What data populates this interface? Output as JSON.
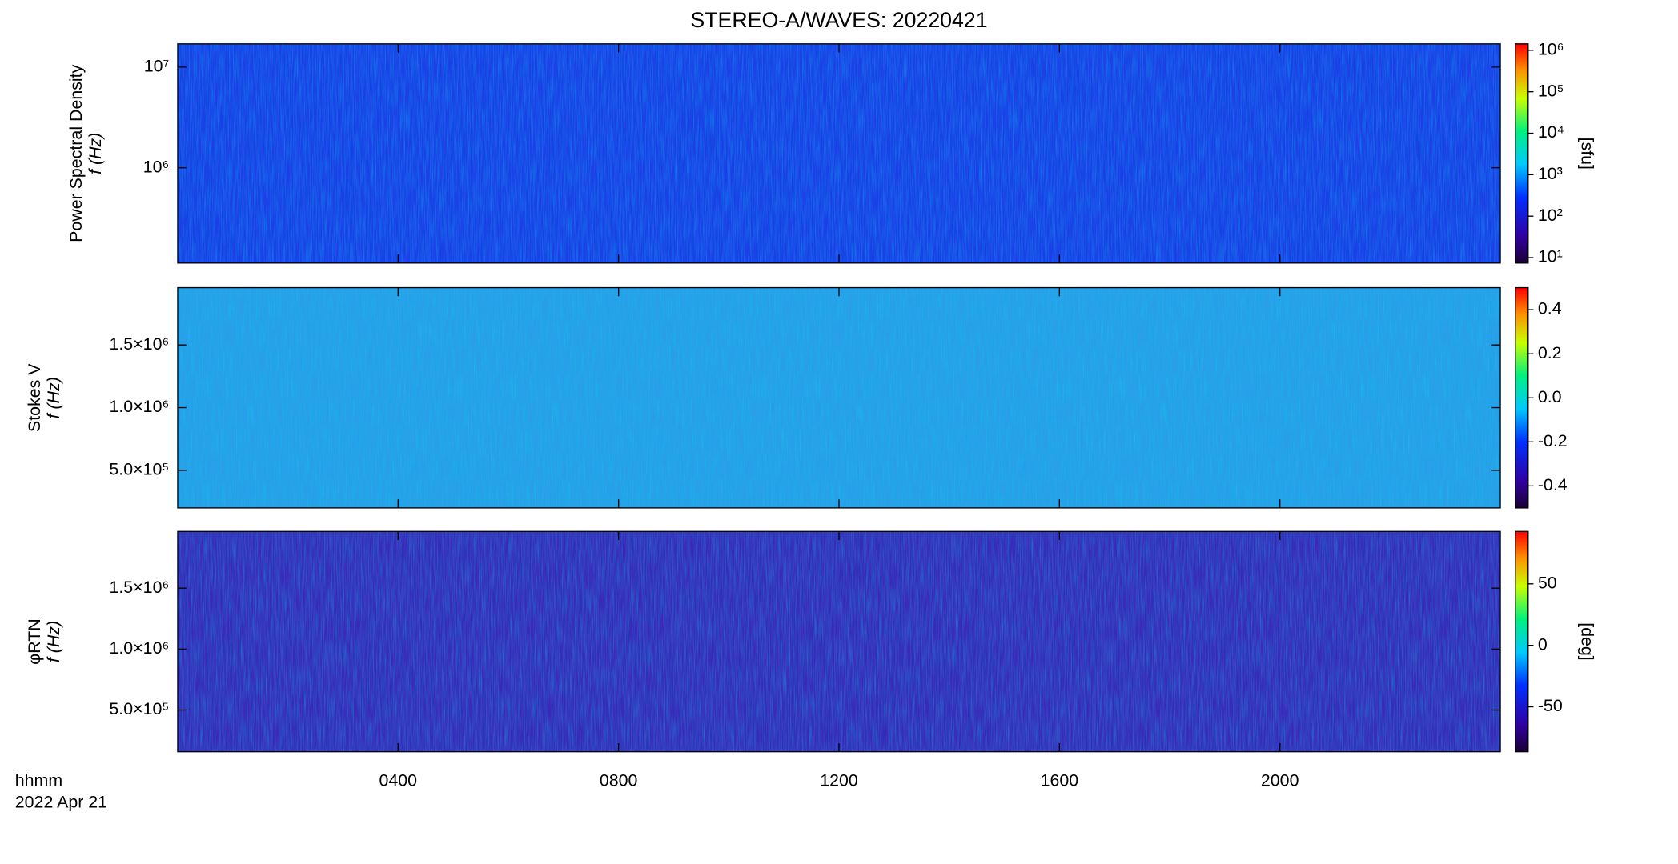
{
  "chart_data": [
    {
      "type": "heatmap",
      "title": "STEREO-A/WAVES: 20220421",
      "ylabel": [
        "Power Spectral Density",
        "f (Hz)"
      ],
      "log_y": true,
      "xlim": [
        0,
        24
      ],
      "ylim": [
        113000,
        17000000
      ],
      "yticks": [
        {
          "value": 1000000,
          "label": "10⁶"
        },
        {
          "value": 10000000,
          "label": "10⁷"
        }
      ],
      "colorbar": {
        "log": true,
        "clim": [
          7.4,
          1430000
        ],
        "label": "[sfu]",
        "ticks": [
          {
            "value": 10,
            "label": "10¹"
          },
          {
            "value": 100,
            "label": "10²"
          },
          {
            "value": 1000,
            "label": "10³"
          },
          {
            "value": 10000,
            "label": "10⁴"
          },
          {
            "value": 100000,
            "label": "10⁵"
          },
          {
            "value": 1000000,
            "label": "10⁶"
          }
        ]
      },
      "color": "#1c3fe6"
    },
    {
      "type": "heatmap",
      "ylabel": [
        "Stokes V",
        "f (Hz)"
      ],
      "log_y": false,
      "xlim": [
        0,
        24
      ],
      "ylim": [
        200000,
        1957000
      ],
      "yticks": [
        {
          "value": 500000,
          "label": "5.0×10⁵"
        },
        {
          "value": 1000000,
          "label": "1.0×10⁶"
        },
        {
          "value": 1500000,
          "label": "1.5×10⁶"
        }
      ],
      "colorbar": {
        "log": false,
        "clim": [
          -0.5,
          0.5
        ],
        "ticks": [
          -0.4,
          -0.2,
          {
            "value": 0,
            "label": "0.0"
          },
          0.2,
          0.4
        ]
      },
      "color": "#2a9ee8"
    },
    {
      "type": "heatmap",
      "ylabel": [
        "φRTN",
        "f (Hz)"
      ],
      "log_y": false,
      "xlim": [
        0,
        24
      ],
      "ylim": [
        158000,
        1965000
      ],
      "yticks": [
        {
          "value": 500000,
          "label": "5.0×10⁵"
        },
        {
          "value": 1000000,
          "label": "1.0×10⁶"
        },
        {
          "value": 1500000,
          "label": "1.5×10⁶"
        }
      ],
      "colorbar": {
        "log": false,
        "clim": [
          -86.5,
          92.6
        ],
        "label": "[deg]",
        "ticks": [
          -50,
          0,
          50
        ]
      },
      "xlabel": [
        "hhmm",
        "2022 Apr 21"
      ],
      "xticks": [
        {
          "value": 4,
          "label": "0400"
        },
        {
          "value": 8,
          "label": "0800"
        },
        {
          "value": 12,
          "label": "1200"
        },
        {
          "value": 16,
          "label": "1600"
        },
        {
          "value": 20,
          "label": "2000"
        }
      ],
      "color": "#3a2ab8"
    }
  ]
}
